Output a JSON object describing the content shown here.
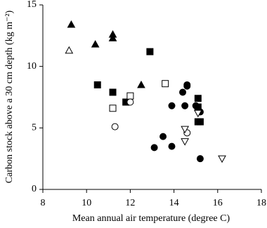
{
  "chart_data": {
    "type": "scatter",
    "x_label": "Mean annual air temperature (degree C)",
    "y_label": "Carbon stock above a 30 cm depth (kg m⁻²)",
    "xlim": [
      8,
      18
    ],
    "xticks": [
      8,
      10,
      12,
      14,
      16,
      18
    ],
    "ylim": [
      0,
      15
    ],
    "yticks": [
      0,
      5,
      10,
      15
    ],
    "series": [
      {
        "marker": "triangle",
        "filled": true,
        "color": "#000000",
        "x": [
          9.3,
          10.4,
          11.2,
          11.2,
          12.5
        ],
        "values": [
          13.4,
          11.8,
          12.6,
          12.3,
          8.5
        ]
      },
      {
        "marker": "triangle",
        "filled": false,
        "color": "#000000",
        "x": [
          9.2
        ],
        "values": [
          11.3
        ]
      },
      {
        "marker": "square",
        "filled": true,
        "color": "#000000",
        "x": [
          10.5,
          11.2,
          11.8,
          12.9,
          15.1,
          15.1,
          15.1,
          15.2
        ],
        "values": [
          8.5,
          7.9,
          7.1,
          11.2,
          7.4,
          6.7,
          5.5,
          5.5
        ]
      },
      {
        "marker": "square",
        "filled": false,
        "color": "#000000",
        "x": [
          11.2,
          12.0,
          13.6
        ],
        "values": [
          6.6,
          7.6,
          8.6
        ]
      },
      {
        "marker": "circle",
        "filled": true,
        "color": "#000000",
        "x": [
          13.1,
          13.5,
          13.9,
          13.9,
          14.4,
          14.5,
          14.6,
          14.6,
          15.0,
          15.1,
          15.2,
          15.2
        ],
        "values": [
          3.4,
          4.3,
          6.8,
          3.5,
          7.9,
          6.8,
          8.4,
          8.5,
          6.8,
          6.5,
          6.3,
          2.5
        ]
      },
      {
        "marker": "circle",
        "filled": false,
        "color": "#000000",
        "x": [
          11.3,
          12.0,
          14.6
        ],
        "values": [
          5.1,
          7.1,
          4.6
        ]
      },
      {
        "marker": "triangle-down",
        "filled": false,
        "color": "#000000",
        "x": [
          14.5,
          14.5,
          15.1,
          16.2
        ],
        "values": [
          4.9,
          3.9,
          6.2,
          2.5
        ]
      }
    ]
  }
}
